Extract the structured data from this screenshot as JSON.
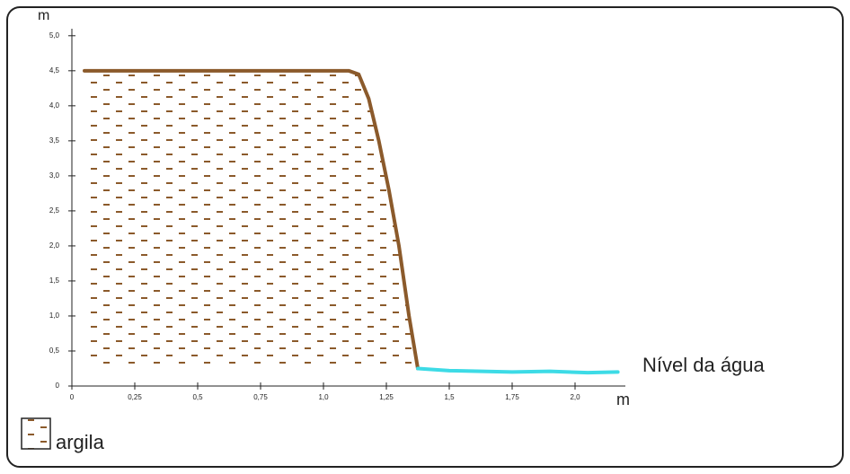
{
  "chart_data": {
    "type": "line",
    "x_label": "m",
    "y_label": "m",
    "xlim": [
      0,
      2.2
    ],
    "ylim": [
      0,
      5.1
    ],
    "xticks": [
      0,
      {
        "value": 0.25,
        "label": "0,25"
      },
      {
        "value": 0.5,
        "label": "0,5"
      },
      {
        "value": 0.75,
        "label": "0,75"
      },
      {
        "value": 1.0,
        "label": "1,0"
      },
      {
        "value": 1.25,
        "label": "1,25"
      },
      {
        "value": 1.5,
        "label": "1,5"
      },
      {
        "value": 1.75,
        "label": "1,75"
      },
      {
        "value": 2.0,
        "label": "2,0"
      }
    ],
    "yticks": [
      0,
      {
        "value": 0.5,
        "label": "0,5"
      },
      {
        "value": 1.0,
        "label": "1,0"
      },
      {
        "value": 1.5,
        "label": "1,5"
      },
      {
        "value": 2.0,
        "label": "2,0"
      },
      {
        "value": 2.5,
        "label": "2,5"
      },
      {
        "value": 3.0,
        "label": "3,0"
      },
      {
        "value": 3.5,
        "label": "3,5"
      },
      {
        "value": 4.0,
        "label": "4,0"
      },
      {
        "value": 4.5,
        "label": "4,5"
      },
      {
        "value": 5.0,
        "label": "5,0"
      }
    ],
    "series": [
      {
        "name": "argila",
        "color": "#8b5a2b",
        "fill": "hatched",
        "x": [
          0.05,
          1.1,
          1.14,
          1.18,
          1.22,
          1.26,
          1.3,
          1.34,
          1.375
        ],
        "values": [
          4.5,
          4.5,
          4.45,
          4.1,
          3.5,
          2.8,
          2.0,
          1.0,
          0.25
        ]
      },
      {
        "name": "Nível da água",
        "color": "#3ddbe6",
        "x": [
          1.375,
          1.5,
          1.75,
          1.9,
          2.05,
          2.17
        ],
        "values": [
          0.25,
          0.22,
          0.2,
          0.21,
          0.19,
          0.2
        ]
      }
    ]
  }
}
